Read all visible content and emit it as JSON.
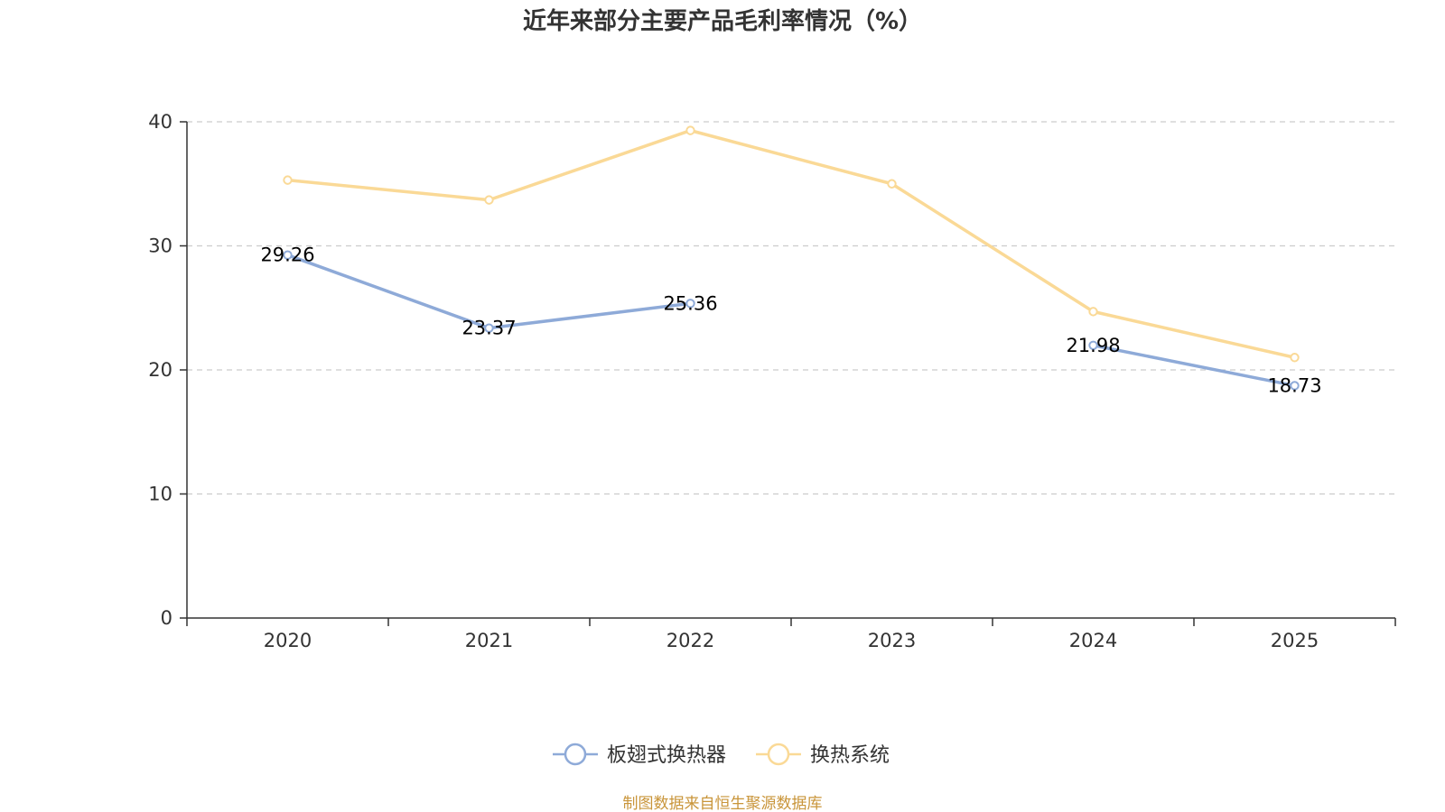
{
  "chart_data": {
    "type": "line",
    "title": "近年来部分主要产品毛利率情况（%）",
    "categories": [
      "2020",
      "2021",
      "2022",
      "2023",
      "2024",
      "2025"
    ],
    "ylim": [
      0,
      40
    ],
    "yticks": [
      "0",
      "10",
      "20",
      "30",
      "40"
    ],
    "grid": true,
    "legend_position": "bottom",
    "series": [
      {
        "name": "板翅式换热器",
        "color": "#8eaad8",
        "values": [
          29.26,
          23.37,
          25.36,
          null,
          21.98,
          18.73
        ],
        "labels": [
          "29.26",
          "23.37",
          "25.36",
          "",
          "21.98",
          "18.73"
        ]
      },
      {
        "name": "换热系统",
        "color": "#fad996",
        "values": [
          35.3,
          33.7,
          39.3,
          35.0,
          24.7,
          21.0
        ],
        "labels": [
          "",
          "",
          "",
          "",
          "",
          ""
        ]
      }
    ]
  },
  "source": "制图数据来自恒生聚源数据库"
}
